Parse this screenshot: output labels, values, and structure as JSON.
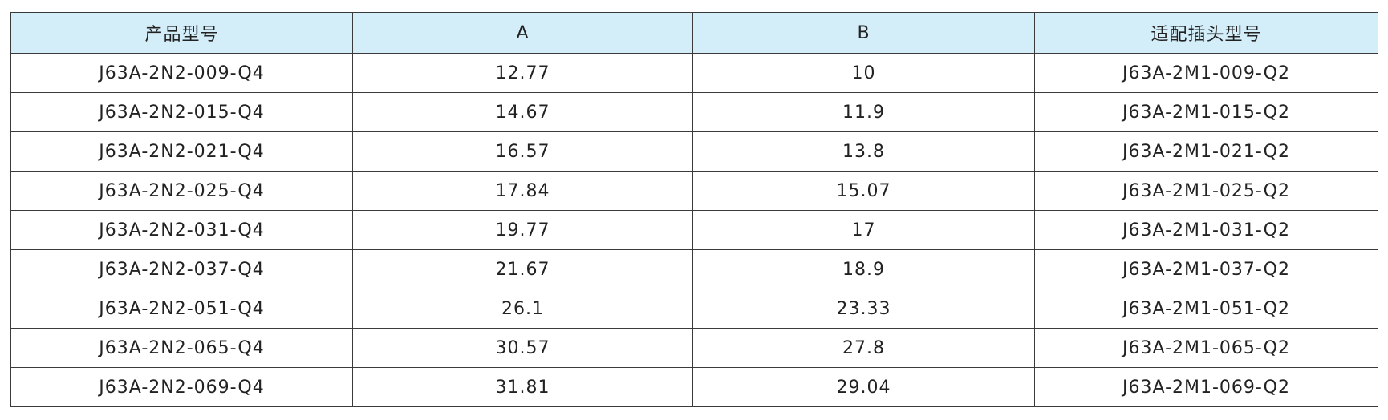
{
  "table": {
    "header": [
      "产品型号",
      "A",
      "B",
      "适配插头型号"
    ],
    "rows": [
      [
        "J63A-2N2-009-Q4",
        "12.77",
        "10",
        "J63A-2M1-009-Q2"
      ],
      [
        "J63A-2N2-015-Q4",
        "14.67",
        "11.9",
        "J63A-2M1-015-Q2"
      ],
      [
        "J63A-2N2-021-Q4",
        "16.57",
        "13.8",
        "J63A-2M1-021-Q2"
      ],
      [
        "J63A-2N2-025-Q4",
        "17.84",
        "15.07",
        "J63A-2M1-025-Q2"
      ],
      [
        "J63A-2N2-031-Q4",
        "19.77",
        "17",
        "J63A-2M1-031-Q2"
      ],
      [
        "J63A-2N2-037-Q4",
        "21.67",
        "18.9",
        "J63A-2M1-037-Q2"
      ],
      [
        "J63A-2N2-051-Q4",
        "26.1",
        "23.33",
        "J63A-2M1-051-Q2"
      ],
      [
        "J63A-2N2-065-Q4",
        "30.57",
        "27.8",
        "J63A-2M1-065-Q2"
      ],
      [
        "J63A-2N2-069-Q4",
        "31.81",
        "29.04",
        "J63A-2M1-069-Q2"
      ]
    ]
  }
}
